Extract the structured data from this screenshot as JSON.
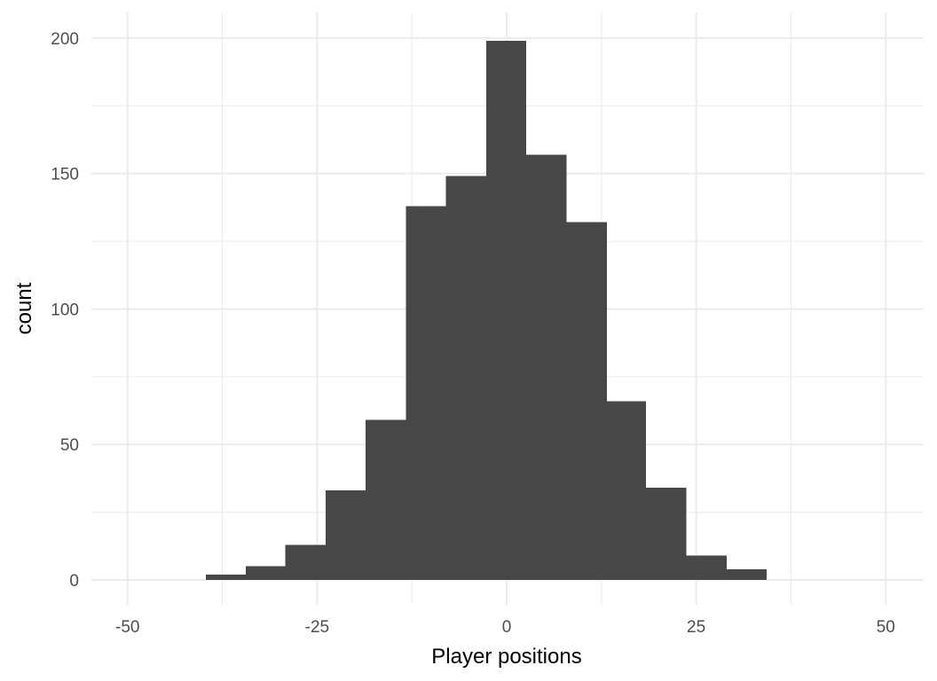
{
  "chart_data": {
    "type": "bar",
    "subtype": "histogram",
    "xlabel": "Player positions",
    "ylabel": "count",
    "xlim": [
      -50,
      50
    ],
    "ylim": [
      0,
      200
    ],
    "x_ticks": [
      -50,
      -25,
      0,
      25,
      50
    ],
    "x_tick_labels": [
      "-50",
      "-25",
      "0",
      "25",
      "50"
    ],
    "y_ticks": [
      0,
      50,
      100,
      150,
      200
    ],
    "y_tick_labels": [
      "0",
      "50",
      "100",
      "150",
      "200"
    ],
    "grid": true,
    "bar_color": "#474747",
    "bins": [
      {
        "x0": -39.7,
        "x1": -34.4,
        "count": 2
      },
      {
        "x0": -34.4,
        "x1": -29.2,
        "count": 5
      },
      {
        "x0": -29.2,
        "x1": -23.9,
        "count": 13
      },
      {
        "x0": -23.9,
        "x1": -18.6,
        "count": 33
      },
      {
        "x0": -18.6,
        "x1": -13.3,
        "count": 59
      },
      {
        "x0": -13.3,
        "x1": -8.0,
        "count": 138
      },
      {
        "x0": -8.0,
        "x1": -2.7,
        "count": 149
      },
      {
        "x0": -2.7,
        "x1": 2.6,
        "count": 199
      },
      {
        "x0": 2.6,
        "x1": 7.9,
        "count": 157
      },
      {
        "x0": 7.9,
        "x1": 13.2,
        "count": 132
      },
      {
        "x0": 13.2,
        "x1": 18.4,
        "count": 66
      },
      {
        "x0": 18.4,
        "x1": 23.7,
        "count": 34
      },
      {
        "x0": 23.7,
        "x1": 29.0,
        "count": 9
      },
      {
        "x0": 29.0,
        "x1": 34.3,
        "count": 4
      }
    ]
  }
}
